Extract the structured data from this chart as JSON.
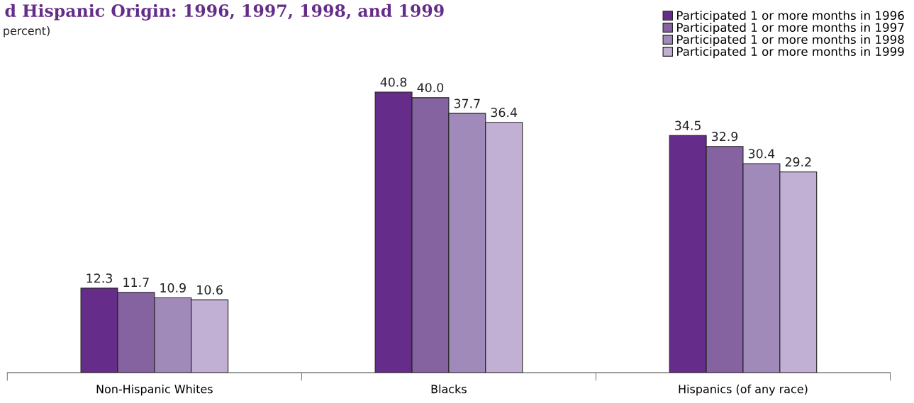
{
  "chart_data": {
    "type": "bar",
    "title": "d Hispanic Origin: 1996, 1997, 1998, and 1999",
    "subtitle": "percent)",
    "categories": [
      "Non-Hispanic Whites",
      "Blacks",
      "Hispanics (of any race)"
    ],
    "series": [
      {
        "name": "Participated 1 or more months in 1996",
        "color": "#652d89",
        "values": [
          12.3,
          40.8,
          34.5
        ]
      },
      {
        "name": "Participated 1 or more months in 1997",
        "color": "#8562a0",
        "values": [
          11.7,
          40.0,
          32.9
        ],
        "value_labels": [
          "11.7",
          "40.0",
          "32.9"
        ]
      },
      {
        "name": "Participated 1 or more months in 1998",
        "color": "#a08ab9",
        "values": [
          10.9,
          37.7,
          30.4
        ]
      },
      {
        "name": "Participated 1 or more months in 1999",
        "color": "#c2b0d4",
        "values": [
          10.6,
          36.4,
          29.2
        ]
      }
    ],
    "data_labels": true,
    "legend": "top right",
    "grid": false,
    "tick_labels": "x"
  }
}
